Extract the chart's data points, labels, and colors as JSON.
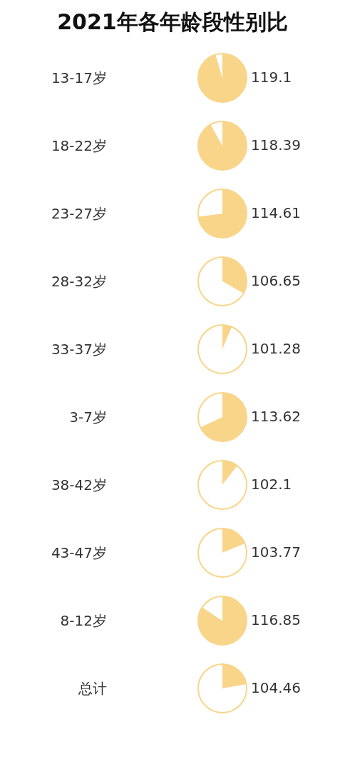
{
  "chart_data": {
    "type": "other",
    "title": "2021年各年龄段性别比",
    "categories": [
      "13-17岁",
      "18-22岁",
      "23-27岁",
      "28-32岁",
      "33-37岁",
      "3-7岁",
      "38-42岁",
      "43-47岁",
      "8-12岁",
      "总计"
    ],
    "values": [
      119.1,
      118.39,
      114.61,
      106.65,
      101.28,
      113.62,
      102.1,
      103.77,
      116.85,
      104.46
    ],
    "color": "#f9d58a",
    "data_labels": true
  }
}
